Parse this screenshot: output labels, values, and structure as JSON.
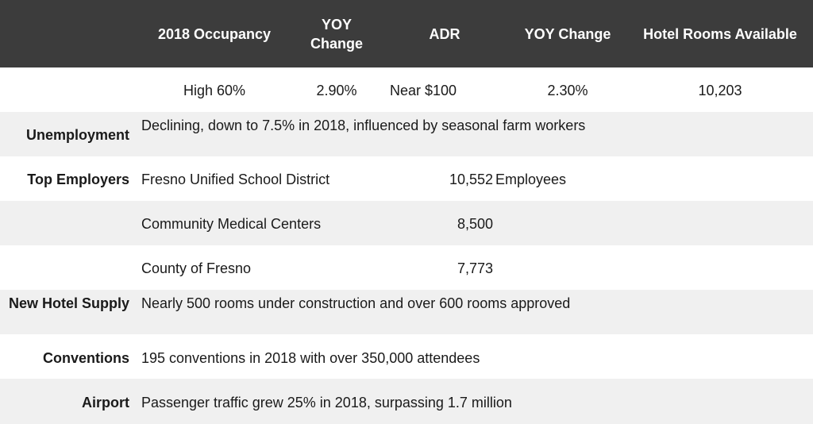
{
  "header": {
    "occupancy": "2018 Occupancy",
    "yoy_change_1": "YOY\nChange",
    "adr": "ADR",
    "yoy_change_2": "YOY Change",
    "rooms_available": "Hotel Rooms Available"
  },
  "metrics": {
    "occupancy": "High 60%",
    "yoy_change_1": "2.90%",
    "adr": "Near $100",
    "yoy_change_2": "2.30%",
    "rooms_available": "10,203"
  },
  "rows": {
    "unemployment": {
      "label": "Unemployment",
      "text": "Declining, down to 7.5% in 2018, influenced by seasonal farm workers"
    },
    "top_employers": {
      "label": "Top Employers",
      "employers": [
        {
          "name": "Fresno Unified School District",
          "count": "10,552",
          "unit": "Employees"
        },
        {
          "name": "Community Medical Centers",
          "count": "8,500"
        },
        {
          "name": "County of Fresno",
          "count": "7,773"
        }
      ]
    },
    "new_hotel_supply": {
      "label": "New Hotel Supply",
      "text": "Nearly 500 rooms under construction and over 600 rooms approved"
    },
    "conventions": {
      "label": "Conventions",
      "text": "195 conventions in 2018 with over 350,000 attendees"
    },
    "airport": {
      "label": "Airport",
      "text": "Passenger traffic grew 25% in 2018, surpassing 1.7 million"
    }
  },
  "colors": {
    "header_bg": "#3c3c3c",
    "header_text": "#ffffff",
    "row_shade": "#f0f0f0"
  }
}
